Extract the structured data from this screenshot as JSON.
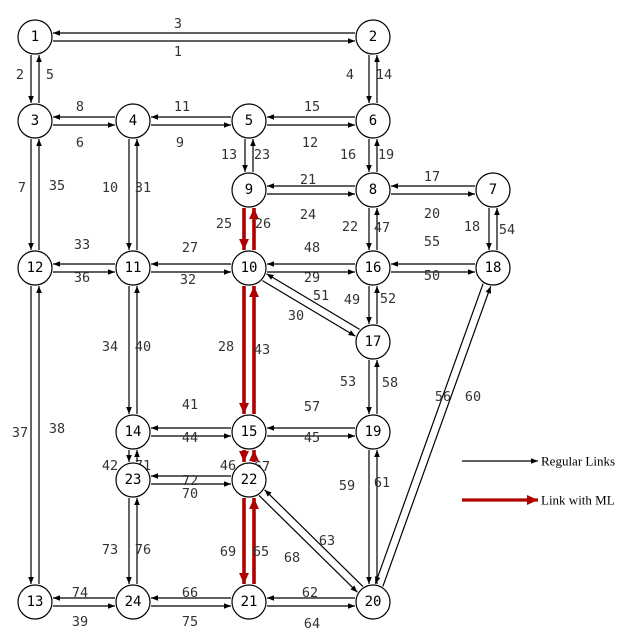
{
  "colors": {
    "regular": "#000000",
    "managed": "#b00000"
  },
  "legend": {
    "regular": "Regular Links",
    "managed": "Link with ML"
  },
  "nodes": [
    {
      "id": 1,
      "label": "1"
    },
    {
      "id": 2,
      "label": "2"
    },
    {
      "id": 3,
      "label": "3"
    },
    {
      "id": 4,
      "label": "4"
    },
    {
      "id": 5,
      "label": "5"
    },
    {
      "id": 6,
      "label": "6"
    },
    {
      "id": 7,
      "label": "7"
    },
    {
      "id": 8,
      "label": "8"
    },
    {
      "id": 9,
      "label": "9"
    },
    {
      "id": 10,
      "label": "10"
    },
    {
      "id": 11,
      "label": "11"
    },
    {
      "id": 12,
      "label": "12"
    },
    {
      "id": 13,
      "label": "13"
    },
    {
      "id": 14,
      "label": "14"
    },
    {
      "id": 15,
      "label": "15"
    },
    {
      "id": 16,
      "label": "16"
    },
    {
      "id": 17,
      "label": "17"
    },
    {
      "id": 18,
      "label": "18"
    },
    {
      "id": 19,
      "label": "19"
    },
    {
      "id": 20,
      "label": "20"
    },
    {
      "id": 21,
      "label": "21"
    },
    {
      "id": 22,
      "label": "22"
    },
    {
      "id": 23,
      "label": "23"
    },
    {
      "id": 24,
      "label": "24"
    }
  ],
  "links": [
    {
      "id": "1",
      "from": 1,
      "to": 2,
      "managed": false
    },
    {
      "id": "2",
      "from": 1,
      "to": 3,
      "managed": false
    },
    {
      "id": "3",
      "from": 2,
      "to": 1,
      "managed": false
    },
    {
      "id": "4",
      "from": 2,
      "to": 6,
      "managed": false
    },
    {
      "id": "5",
      "from": 3,
      "to": 1,
      "managed": false
    },
    {
      "id": "6",
      "from": 3,
      "to": 4,
      "managed": false
    },
    {
      "id": "7",
      "from": 3,
      "to": 12,
      "managed": false
    },
    {
      "id": "8",
      "from": 4,
      "to": 3,
      "managed": false
    },
    {
      "id": "9",
      "from": 4,
      "to": 5,
      "managed": false
    },
    {
      "id": "10",
      "from": 4,
      "to": 11,
      "managed": false
    },
    {
      "id": "11",
      "from": 5,
      "to": 4,
      "managed": false
    },
    {
      "id": "12",
      "from": 5,
      "to": 6,
      "managed": false
    },
    {
      "id": "13",
      "from": 5,
      "to": 9,
      "managed": false
    },
    {
      "id": "14",
      "from": 6,
      "to": 2,
      "managed": false
    },
    {
      "id": "15",
      "from": 6,
      "to": 5,
      "managed": false
    },
    {
      "id": "16",
      "from": 6,
      "to": 8,
      "managed": false
    },
    {
      "id": "17",
      "from": 7,
      "to": 8,
      "managed": false
    },
    {
      "id": "18",
      "from": 7,
      "to": 18,
      "managed": false
    },
    {
      "id": "19",
      "from": 8,
      "to": 6,
      "managed": false
    },
    {
      "id": "20",
      "from": 8,
      "to": 7,
      "managed": false
    },
    {
      "id": "21",
      "from": 8,
      "to": 9,
      "managed": false
    },
    {
      "id": "22",
      "from": 8,
      "to": 16,
      "managed": false
    },
    {
      "id": "23",
      "from": 9,
      "to": 5,
      "managed": false
    },
    {
      "id": "24",
      "from": 9,
      "to": 8,
      "managed": false
    },
    {
      "id": "25",
      "from": 9,
      "to": 10,
      "managed": true
    },
    {
      "id": "26",
      "from": 10,
      "to": 9,
      "managed": true
    },
    {
      "id": "27",
      "from": 10,
      "to": 11,
      "managed": false
    },
    {
      "id": "28",
      "from": 10,
      "to": 15,
      "managed": true
    },
    {
      "id": "29",
      "from": 10,
      "to": 16,
      "managed": false
    },
    {
      "id": "30",
      "from": 10,
      "to": 17,
      "managed": false
    },
    {
      "id": "31",
      "from": 11,
      "to": 4,
      "managed": false
    },
    {
      "id": "32",
      "from": 11,
      "to": 10,
      "managed": false
    },
    {
      "id": "33",
      "from": 11,
      "to": 12,
      "managed": false
    },
    {
      "id": "34",
      "from": 11,
      "to": 14,
      "managed": false
    },
    {
      "id": "35",
      "from": 12,
      "to": 3,
      "managed": false
    },
    {
      "id": "36",
      "from": 12,
      "to": 11,
      "managed": false
    },
    {
      "id": "37",
      "from": 12,
      "to": 13,
      "managed": false
    },
    {
      "id": "38",
      "from": 13,
      "to": 12,
      "managed": false
    },
    {
      "id": "39",
      "from": 13,
      "to": 24,
      "managed": false
    },
    {
      "id": "40",
      "from": 14,
      "to": 11,
      "managed": false
    },
    {
      "id": "41",
      "from": 14,
      "to": 15,
      "managed": false
    },
    {
      "id": "42",
      "from": 14,
      "to": 23,
      "managed": false
    },
    {
      "id": "43",
      "from": 15,
      "to": 10,
      "managed": true
    },
    {
      "id": "44",
      "from": 15,
      "to": 14,
      "managed": false
    },
    {
      "id": "45",
      "from": 15,
      "to": 19,
      "managed": false
    },
    {
      "id": "46",
      "from": 15,
      "to": 22,
      "managed": true
    },
    {
      "id": "47",
      "from": 16,
      "to": 8,
      "managed": false
    },
    {
      "id": "48",
      "from": 16,
      "to": 10,
      "managed": false
    },
    {
      "id": "49",
      "from": 16,
      "to": 17,
      "managed": false
    },
    {
      "id": "50",
      "from": 16,
      "to": 18,
      "managed": false
    },
    {
      "id": "51",
      "from": 17,
      "to": 10,
      "managed": false
    },
    {
      "id": "52",
      "from": 17,
      "to": 16,
      "managed": false
    },
    {
      "id": "53",
      "from": 17,
      "to": 19,
      "managed": false
    },
    {
      "id": "54",
      "from": 18,
      "to": 7,
      "managed": false
    },
    {
      "id": "55",
      "from": 18,
      "to": 16,
      "managed": false
    },
    {
      "id": "56",
      "from": 18,
      "to": 20,
      "managed": false
    },
    {
      "id": "57",
      "from": 19,
      "to": 15,
      "managed": false
    },
    {
      "id": "58",
      "from": 19,
      "to": 17,
      "managed": false
    },
    {
      "id": "59",
      "from": 19,
      "to": 20,
      "managed": false
    },
    {
      "id": "60",
      "from": 20,
      "to": 18,
      "managed": false
    },
    {
      "id": "61",
      "from": 20,
      "to": 19,
      "managed": false
    },
    {
      "id": "62",
      "from": 20,
      "to": 21,
      "managed": false
    },
    {
      "id": "63",
      "from": 20,
      "to": 22,
      "managed": false
    },
    {
      "id": "64",
      "from": 21,
      "to": 20,
      "managed": false
    },
    {
      "id": "65",
      "from": 21,
      "to": 22,
      "managed": true
    },
    {
      "id": "66",
      "from": 21,
      "to": 24,
      "managed": false
    },
    {
      "id": "67",
      "from": 22,
      "to": 15,
      "managed": true
    },
    {
      "id": "68",
      "from": 22,
      "to": 20,
      "managed": false
    },
    {
      "id": "69",
      "from": 22,
      "to": 21,
      "managed": true
    },
    {
      "id": "70",
      "from": 22,
      "to": 23,
      "managed": false
    },
    {
      "id": "71",
      "from": 23,
      "to": 14,
      "managed": false
    },
    {
      "id": "72",
      "from": 23,
      "to": 22,
      "managed": false
    },
    {
      "id": "73",
      "from": 23,
      "to": 24,
      "managed": false
    },
    {
      "id": "74",
      "from": 24,
      "to": 13,
      "managed": false
    },
    {
      "id": "75",
      "from": 24,
      "to": 21,
      "managed": false
    },
    {
      "id": "76",
      "from": 24,
      "to": 23,
      "managed": false
    }
  ]
}
